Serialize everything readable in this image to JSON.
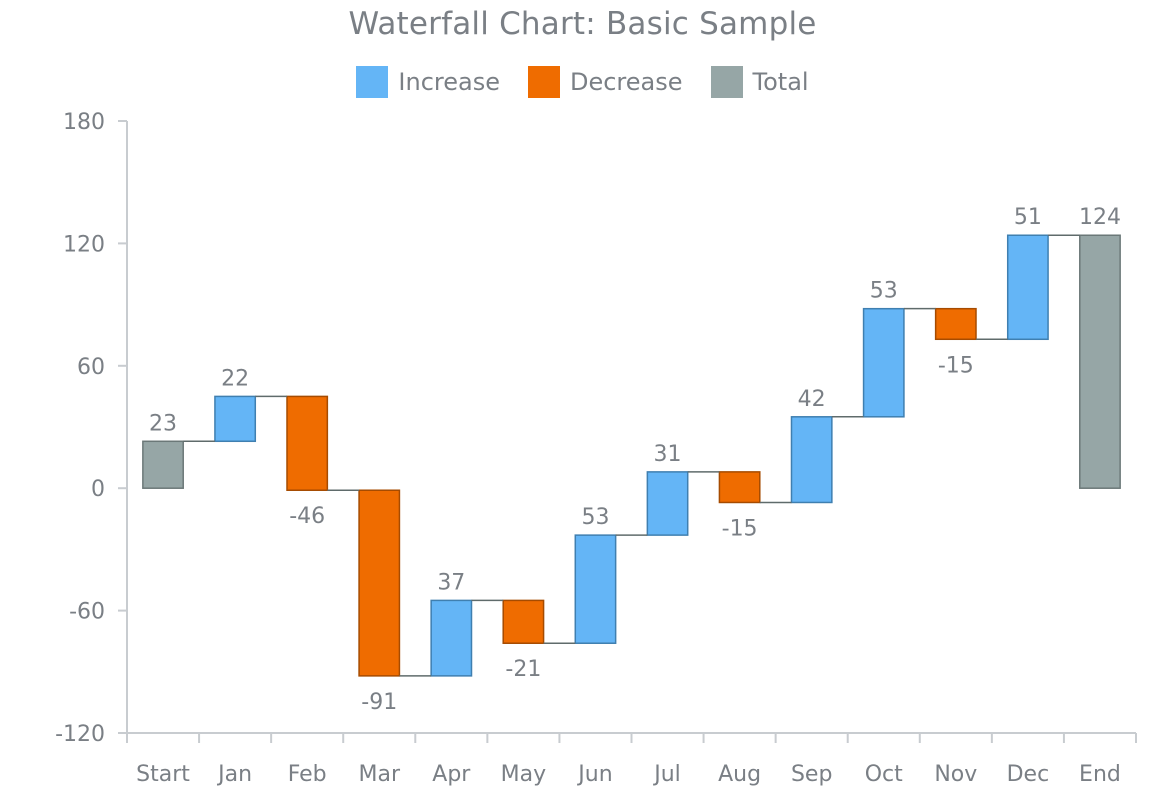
{
  "chart_data": {
    "type": "bar",
    "subtype": "waterfall",
    "title": "Waterfall Chart: Basic Sample",
    "xlabel": "",
    "ylabel": "",
    "ylim": [
      -120,
      180
    ],
    "yticks": [
      "180",
      "120",
      "60",
      "0",
      "-60",
      "-120"
    ],
    "ytick_values": [
      180,
      120,
      60,
      0,
      -60,
      -120
    ],
    "grid": false,
    "legend_position": "top-center",
    "legend": [
      {
        "name": "Increase",
        "color": "#64b5f6"
      },
      {
        "name": "Decrease",
        "color": "#ef6c00"
      },
      {
        "name": "Total",
        "color": "#96a6a6"
      }
    ],
    "categories": [
      "Start",
      "Jan",
      "Feb",
      "Mar",
      "Apr",
      "May",
      "Jun",
      "Jul",
      "Aug",
      "Sep",
      "Oct",
      "Nov",
      "Dec",
      "End"
    ],
    "values": [
      23,
      22,
      -46,
      -91,
      37,
      -21,
      53,
      31,
      -15,
      42,
      53,
      -15,
      51,
      124
    ],
    "labels": [
      "23",
      "22",
      "-46",
      "-91",
      "37",
      "-21",
      "53",
      "31",
      "-15",
      "42",
      "53",
      "-15",
      "51",
      "124"
    ],
    "kinds": [
      "total",
      "increase",
      "decrease",
      "decrease",
      "increase",
      "decrease",
      "increase",
      "increase",
      "decrease",
      "increase",
      "increase",
      "decrease",
      "increase",
      "total"
    ],
    "colors": {
      "increase": "#64b5f6",
      "increase_stroke": "#3f7fb0",
      "decrease": "#ef6c00",
      "decrease_stroke": "#a64b00",
      "total": "#96a6a6",
      "total_stroke": "#6b7878",
      "connector": "#5f6b6b",
      "axis": "#c8ccd0"
    }
  }
}
